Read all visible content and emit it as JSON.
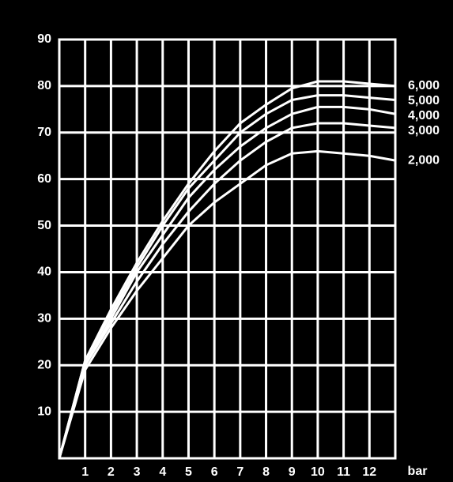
{
  "chart_data": {
    "type": "line",
    "x": [
      0,
      1,
      2,
      3,
      4,
      5,
      6,
      7,
      8,
      9,
      10,
      11,
      12,
      13
    ],
    "x_label": "bar",
    "series": [
      {
        "name": "6,000",
        "color": "#ffffff",
        "values": [
          0,
          21,
          32,
          42,
          51,
          59,
          66,
          72,
          76,
          79.5,
          81,
          81,
          80.5,
          80
        ]
      },
      {
        "name": "5,000",
        "color": "#ffffff",
        "values": [
          0,
          21,
          31,
          41,
          50,
          58,
          64,
          70,
          74,
          77,
          78,
          78,
          77.5,
          77
        ]
      },
      {
        "name": "4,000",
        "color": "#ffffff",
        "values": [
          0,
          20,
          30,
          40,
          48,
          56,
          62,
          67,
          71,
          74,
          75.5,
          75.5,
          75,
          74
        ]
      },
      {
        "name": "3,000",
        "color": "#ffffff",
        "values": [
          0,
          20,
          29,
          38,
          46,
          53,
          59,
          64,
          68,
          71,
          72,
          72,
          71.5,
          71
        ]
      },
      {
        "name": "2,000",
        "color": "#ffffff",
        "values": [
          0,
          19,
          28,
          36,
          43,
          50,
          55,
          59,
          63,
          65.5,
          66,
          65.5,
          65,
          64
        ]
      }
    ],
    "xlim": [
      0,
      13
    ],
    "xticks": [
      1,
      2,
      3,
      4,
      5,
      6,
      7,
      8,
      9,
      10,
      11,
      12
    ],
    "ylim": [
      0,
      90
    ],
    "yticks": [
      10,
      20,
      30,
      40,
      50,
      60,
      70,
      80,
      90
    ],
    "grid": true
  }
}
